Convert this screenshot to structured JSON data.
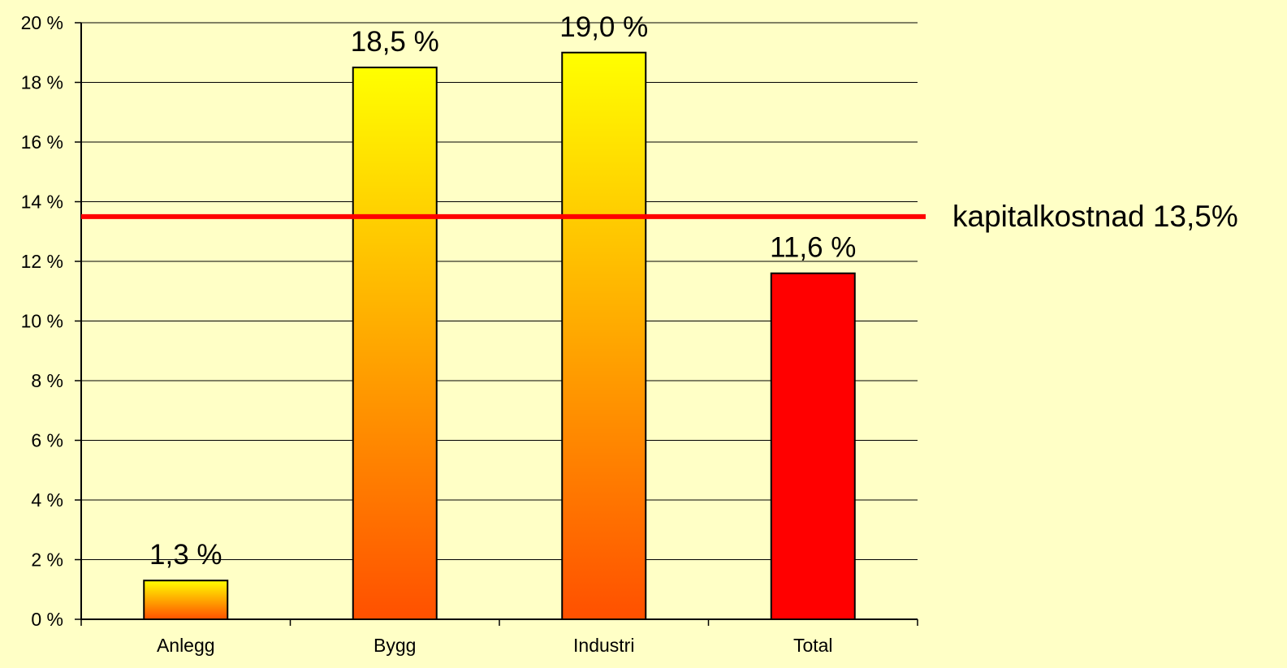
{
  "chart_data": {
    "type": "bar",
    "categories": [
      "Anlegg",
      "Bygg",
      "Industri",
      "Total"
    ],
    "values": [
      1.3,
      18.5,
      19.0,
      11.6
    ],
    "data_labels": [
      "1,3 %",
      "18,5 %",
      "19,0 %",
      "11,6 %"
    ],
    "ylim": [
      0,
      20
    ],
    "y_ticks": [
      0,
      2,
      4,
      6,
      8,
      10,
      12,
      14,
      16,
      18,
      20
    ],
    "y_tick_labels": [
      "0 %",
      "2 %",
      "4 %",
      "6 %",
      "8 %",
      "10 %",
      "12 %",
      "14 %",
      "16 %",
      "18 %",
      "20 %"
    ],
    "grid": true,
    "title": "",
    "xlabel": "",
    "ylabel": "",
    "reference_line": {
      "value": 13.5,
      "label": "kapitalkostnad 13,5%",
      "color": "#ff0000"
    },
    "bar_styles": [
      {
        "style": "gradient",
        "top_color": "#ffff00",
        "bottom_color": "#ff5000"
      },
      {
        "style": "gradient",
        "top_color": "#ffff00",
        "bottom_color": "#ff5000"
      },
      {
        "style": "gradient",
        "top_color": "#ffff00",
        "bottom_color": "#ff5000"
      },
      {
        "style": "solid",
        "color": "#ff0000"
      }
    ]
  },
  "colors": {
    "background": "#ffffc6",
    "gridline": "#000000",
    "bar_outline": "#000000"
  }
}
